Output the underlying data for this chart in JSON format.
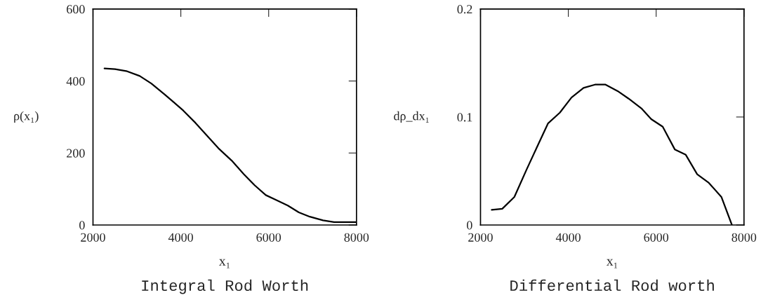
{
  "chart_data": [
    {
      "type": "line",
      "title": "Integral Rod Worth",
      "xlabel": "x₁",
      "ylabel": "ρ(x₁)",
      "x": [
        2261,
        2501,
        2777,
        3063,
        3328,
        3629,
        3830,
        4055,
        4331,
        4581,
        4857,
        5158,
        5434,
        5684,
        5935,
        6160,
        6436,
        6687,
        6937,
        7238,
        7489,
        8000
      ],
      "series": [
        {
          "color": "#000000",
          "values": [
            435,
            433,
            427,
            414,
            393,
            363,
            342,
            318,
            284,
            250,
            213,
            179,
            141,
            110,
            83,
            70,
            54,
            35,
            23,
            13,
            8,
            8
          ]
        }
      ],
      "xlim": [
        2000,
        8000
      ],
      "xticks": [
        2000,
        4000,
        6000,
        8000
      ],
      "ylim": [
        0,
        600
      ],
      "yticks": [
        0,
        200,
        400,
        600
      ],
      "grid": false,
      "legend": false,
      "line_style": "solid"
    },
    {
      "type": "line",
      "title": "Differential Rod worth",
      "xlabel": "x₁",
      "ylabel": "dρ_dx₁",
      "x": [
        2255,
        2495,
        2771,
        3046,
        3296,
        3536,
        3806,
        4072,
        4347,
        4607,
        4847,
        5123,
        5373,
        5663,
        5888,
        6149,
        6424,
        6674,
        6934,
        7200,
        7485,
        7725
      ],
      "series": [
        {
          "color": "#000000",
          "values": [
            0.014,
            0.015,
            0.026,
            0.051,
            0.073,
            0.094,
            0.104,
            0.118,
            0.127,
            0.13,
            0.13,
            0.124,
            0.117,
            0.108,
            0.098,
            0.091,
            0.07,
            0.065,
            0.047,
            0.039,
            0.026,
            0
          ]
        }
      ],
      "xlim": [
        2000,
        8000
      ],
      "xticks": [
        2000,
        4000,
        6000,
        8000
      ],
      "ylim": [
        0,
        0.2
      ],
      "yticks": [
        0,
        0.1,
        0.2
      ],
      "grid": false,
      "legend": false,
      "line_style": "solid"
    }
  ]
}
